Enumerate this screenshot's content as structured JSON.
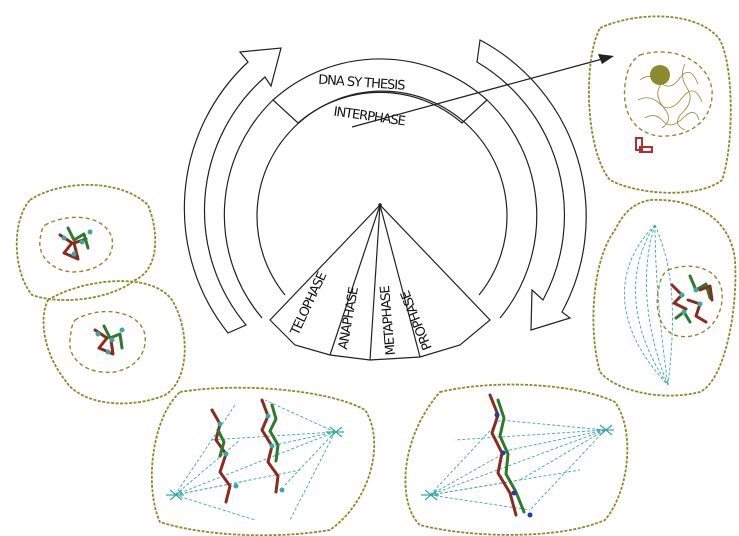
{
  "cycle": {
    "outer_label": "DNA SY THESIS",
    "inner_label": "INTERPHASE",
    "mitosis_phases": [
      "TELOPHASE",
      "ANAPHASE",
      "METAPHASE",
      "PROPHASE"
    ]
  },
  "cells": [
    "interphase-cell",
    "prophase-cell",
    "metaphase-cell",
    "anaphase-cell",
    "telophase-cells"
  ],
  "colors": {
    "ink": "#222222",
    "membrane": "#8c8a2c",
    "spindle": "#3aa8a8",
    "chromosome": "#8b2a1e",
    "chromosome_alt": "#2f7a2a",
    "centromere": "#2a3aa0",
    "nucleolus": "#8c8a2c",
    "centrosome": "#b03030"
  }
}
